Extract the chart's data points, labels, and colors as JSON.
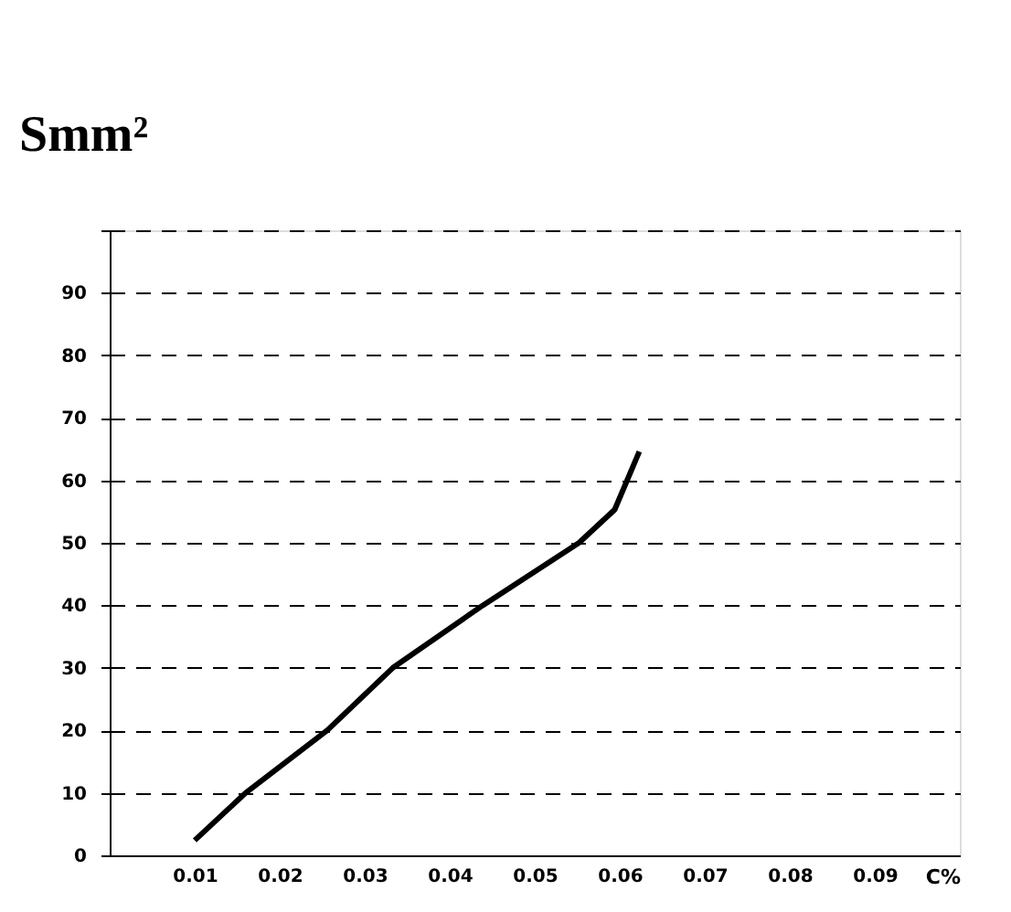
{
  "chart_data": {
    "type": "line",
    "ylabel": "Smm²",
    "xlabel": "C%",
    "x": [
      0.01,
      0.016,
      0.0256,
      0.0333,
      0.0439,
      0.0552,
      0.0594,
      0.0623
    ],
    "series": [
      {
        "color": "#000000",
        "values": [
          2.4,
          10,
          20,
          30,
          40,
          50,
          55.3,
          64.6
        ]
      }
    ],
    "xlim": [
      0,
      0.1
    ],
    "xticks": [
      0.01,
      0.02,
      0.03,
      0.04,
      0.05,
      0.06,
      0.07,
      0.08,
      0.09
    ],
    "ylim": [
      0,
      100
    ],
    "yticks": [
      0,
      10,
      20,
      30,
      40,
      50,
      60,
      70,
      80,
      90,
      {
        "value": 100,
        "label": null
      }
    ],
    "grid": "y",
    "line_style": "solid",
    "marker": "none"
  }
}
